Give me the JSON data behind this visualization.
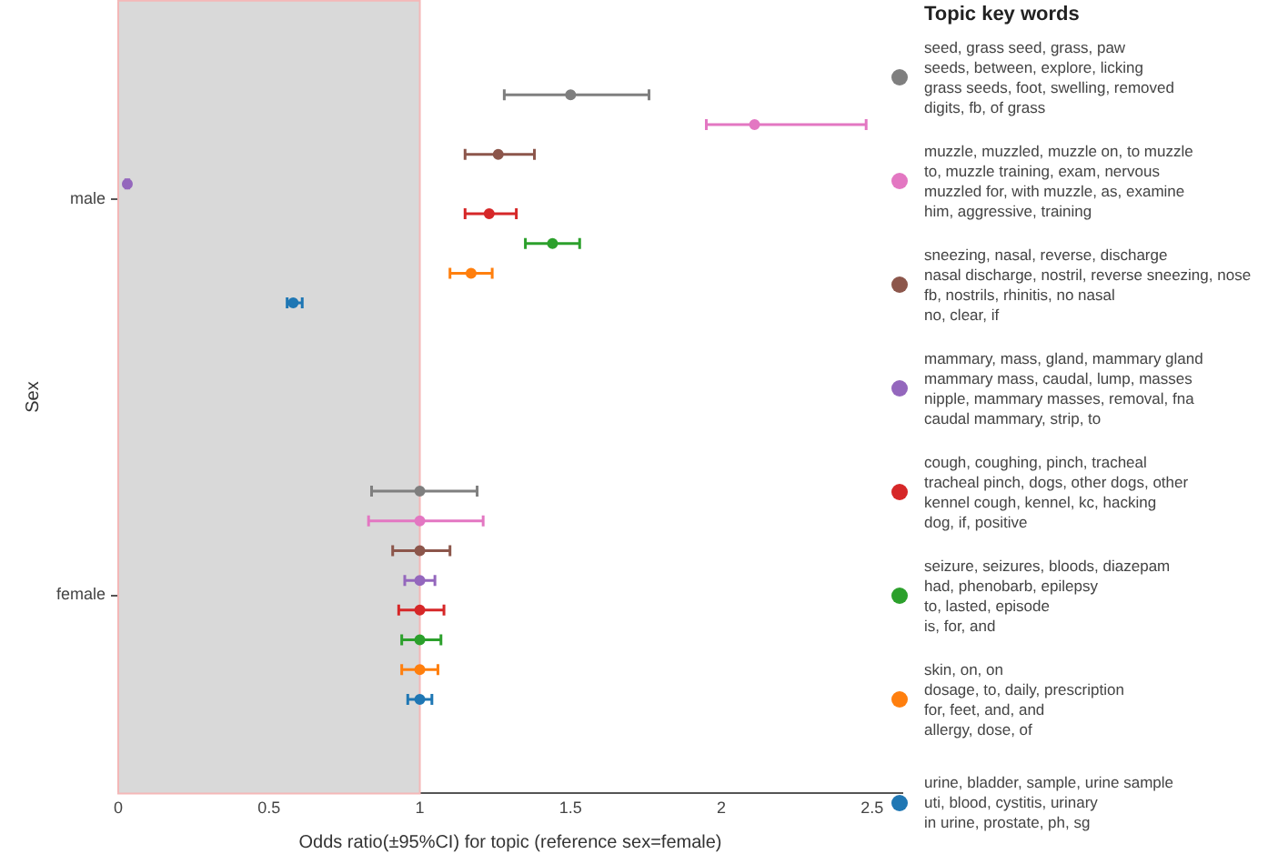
{
  "chart_data": {
    "type": "scatter",
    "orientation": "horizontal",
    "categories": [
      "male",
      "female"
    ],
    "xlabel": "Odds ratio(±95%CI) for topic (reference sex=female)",
    "ylabel": "Sex",
    "legend_title": "Topic key words",
    "legend": "right",
    "grid": false,
    "marker": "circle",
    "xlim": [
      0,
      2.6
    ],
    "xticks": [
      0,
      0.5,
      1,
      1.5,
      2,
      2.5
    ],
    "bands": [
      {
        "axis": "x",
        "from": 0,
        "to": 1,
        "color": "#d9d9d9"
      }
    ],
    "series": [
      {
        "name": "seed, grass seed, grass, paw\nseeds, between, explore, licking\ngrass seeds, foot, swelling, removed\ndigits, fb, of grass",
        "color": "#7f7f7f",
        "values": [
          1.5,
          1
        ],
        "errors": [
          [
            1.28,
            1.76
          ],
          [
            0.84,
            1.19
          ]
        ]
      },
      {
        "name": "muzzle, muzzled, muzzle on, to muzzle\nto, muzzle training, exam, nervous\nmuzzled for, with muzzle, as, examine\nhim, aggressive, training",
        "color": "#e377c2",
        "values": [
          2.11,
          1
        ],
        "errors": [
          [
            1.95,
            2.48
          ],
          [
            0.83,
            1.21
          ]
        ]
      },
      {
        "name": "sneezing, nasal, reverse, discharge\nnasal discharge, nostril, reverse sneezing, nose\nfb, nostrils, rhinitis, no nasal\nno, clear, if",
        "color": "#8c564b",
        "values": [
          1.26,
          1
        ],
        "errors": [
          [
            1.15,
            1.38
          ],
          [
            0.91,
            1.1
          ]
        ]
      },
      {
        "name": "mammary, mass, gland, mammary gland\nmammary mass, caudal, lump, masses\nnipple, mammary masses, removal, fna\ncaudal mammary, strip, to",
        "color": "#9467bd",
        "values": [
          0.03,
          1
        ],
        "errors": [
          [
            0.025,
            0.035
          ],
          [
            0.95,
            1.05
          ]
        ]
      },
      {
        "name": "cough, coughing, pinch, tracheal\ntracheal pinch, dogs, other dogs, other\nkennel cough, kennel, kc, hacking\ndog, if, positive",
        "color": "#d62728",
        "values": [
          1.23,
          1
        ],
        "errors": [
          [
            1.15,
            1.32
          ],
          [
            0.93,
            1.08
          ]
        ]
      },
      {
        "name": "seizure, seizures, bloods, diazepam\nhad, phenobarb, epilepsy\nto, lasted, episode\nis, for, and",
        "color": "#2ca02c",
        "values": [
          1.44,
          1
        ],
        "errors": [
          [
            1.35,
            1.53
          ],
          [
            0.94,
            1.07
          ]
        ]
      },
      {
        "name": "skin, on, on\ndosage, to, daily, prescription\nfor, feet, and, and\nallergy, dose, of",
        "color": "#ff7f0e",
        "values": [
          1.17,
          1
        ],
        "errors": [
          [
            1.1,
            1.24
          ],
          [
            0.94,
            1.06
          ]
        ]
      },
      {
        "name": "urine, bladder, sample, urine sample\nuti, blood, cystitis, urinary\nin urine, prostate, ph, sg",
        "color": "#1f77b4",
        "values": [
          0.58,
          1
        ],
        "errors": [
          [
            0.56,
            0.61
          ],
          [
            0.96,
            1.04
          ]
        ]
      }
    ]
  }
}
